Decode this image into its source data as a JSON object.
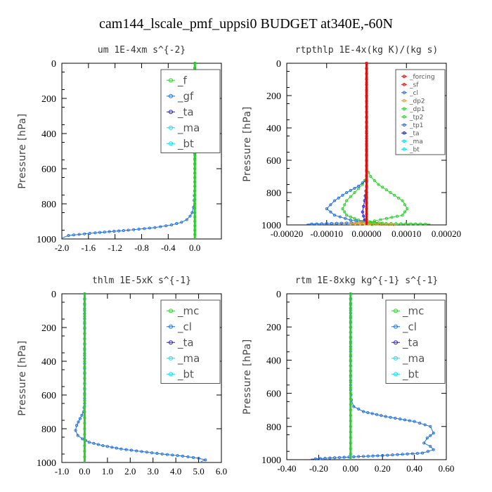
{
  "title": "cam144_lscale_pmf_uppsi0  BUDGET at340E,-60N",
  "colors": {
    "green": "#2ecc2e",
    "blue": "#1f6fe0",
    "red": "#dd1111",
    "orange": "#e8a020",
    "cyan": "#00e0f0",
    "navy": "#1a1adf"
  },
  "chart_data": [
    {
      "type": "line",
      "title": "um  1E-4xm s^{-2}",
      "ylabel": "Pressure [hPa]",
      "xlim": [
        -2.0,
        0.4
      ],
      "ylim": [
        1000,
        0
      ],
      "xticks": [
        -2.0,
        -1.6,
        -1.2,
        -0.8,
        -0.4,
        0.0
      ],
      "xtick_labels": [
        "-2.0",
        "-1.6",
        "-1.2",
        "-0.8",
        "-0.4",
        "0.0"
      ],
      "yticks": [
        0,
        200,
        400,
        600,
        800,
        1000
      ],
      "ytick_labels": [
        "0",
        "200",
        "400",
        "600",
        "800",
        "1000"
      ],
      "legend_font": 15,
      "legend": [
        "_f",
        "_gf",
        "_ta",
        "_ma",
        "_bt"
      ],
      "series": [
        {
          "name": "_gf",
          "color": "#1f6fe0",
          "x": [
            0.0,
            0.0,
            0.0,
            0.0,
            0.0,
            -0.01,
            -0.02,
            -0.04,
            -0.07,
            -0.12,
            -0.2,
            -0.35,
            -0.6,
            -1.0,
            -1.5,
            -1.9,
            -2.0
          ],
          "y": [
            0,
            200,
            400,
            600,
            700,
            780,
            820,
            850,
            870,
            890,
            905,
            920,
            935,
            950,
            965,
            980,
            995
          ]
        },
        {
          "name": "_f",
          "color": "#2ecc2e",
          "x": [
            0.0,
            0.0,
            0.0,
            0.0,
            0.0,
            0.0,
            0.0,
            0.0,
            0.0,
            0.0,
            0.0
          ],
          "y": [
            0,
            100,
            200,
            300,
            400,
            500,
            600,
            700,
            800,
            900,
            1000
          ]
        }
      ]
    },
    {
      "type": "line",
      "title": "rtpthlp  1E-4x(kg K)/(kg s)",
      "ylabel": "Pressure [hPa]",
      "xlim": [
        -0.0002,
        0.0002
      ],
      "ylim": [
        1000,
        0
      ],
      "xticks": [
        -0.0002,
        -0.0001,
        0.0,
        0.0001,
        0.0002
      ],
      "xtick_labels": [
        "-0.00020",
        "-0.00010",
        "0.00000",
        "0.00010",
        "0.00020"
      ],
      "yticks": [
        0,
        200,
        400,
        600,
        800,
        1000
      ],
      "ytick_labels": [
        "0",
        "200",
        "400",
        "600",
        "800",
        "1000"
      ],
      "legend_font": 9,
      "legend": [
        "_forcing",
        "_sf",
        "_cl",
        "_dp2",
        "_dp1",
        "_tp2",
        "_tp1",
        "_ta",
        "_ma",
        "_bt"
      ],
      "series": [
        {
          "name": "_dp1",
          "color": "#2ecc2e",
          "x": [
            0.0,
            0.0,
            1e-05,
            3e-05,
            6e-05,
            9e-05,
            0.000102,
            9e-05,
            5e-05,
            2e-05,
            0.0,
            0.00016
          ],
          "y": [
            0,
            650,
            700,
            750,
            800,
            850,
            900,
            940,
            960,
            975,
            990,
            995
          ]
        },
        {
          "name": "_tp2",
          "color": "#2ecc2e",
          "x": [
            0.0,
            0.0,
            -1e-05,
            -3e-05,
            -5e-05,
            -6e-05,
            -5e-05,
            -2e-05,
            2e-05,
            4e-05,
            0.0
          ],
          "y": [
            0,
            700,
            750,
            800,
            850,
            900,
            940,
            970,
            985,
            990,
            1000
          ]
        },
        {
          "name": "_tp1",
          "color": "#1f6fe0",
          "x": [
            0.0,
            0.0,
            -2e-05,
            -5e-05,
            -8e-05,
            -0.0001,
            -8e-05,
            -4e-05,
            0.0,
            -0.00015
          ],
          "y": [
            0,
            720,
            760,
            800,
            850,
            900,
            940,
            970,
            985,
            995
          ]
        },
        {
          "name": "_ta",
          "color": "#1a1adf",
          "x": [
            0.0,
            0.0,
            -5e-06,
            -1e-05,
            -5e-06,
            0.0
          ],
          "y": [
            0,
            760,
            850,
            920,
            970,
            1000
          ]
        },
        {
          "name": "_dp2",
          "color": "#e8a020",
          "x": [
            0.0,
            0.0,
            -4e-05,
            8e-05
          ],
          "y": [
            0,
            980,
            992,
            998
          ]
        },
        {
          "name": "_forcing",
          "color": "#dd1111",
          "x": [
            0.0,
            0.0,
            0.0,
            0.0,
            0.0,
            0.0,
            0.0,
            0.0,
            0.0,
            0.0,
            0.0
          ],
          "y": [
            0,
            100,
            200,
            300,
            400,
            500,
            600,
            700,
            800,
            900,
            1000
          ]
        }
      ]
    },
    {
      "type": "line",
      "title": "thlm  1E-5xK s^{-1}",
      "ylabel": "Pressure [hPa]",
      "xlim": [
        -1.0,
        6.0
      ],
      "ylim": [
        1000,
        0
      ],
      "xticks": [
        -1.0,
        0.0,
        1.0,
        2.0,
        3.0,
        4.0,
        5.0,
        6.0
      ],
      "xtick_labels": [
        "-1.0",
        "0.0",
        "1.0",
        "2.0",
        "3.0",
        "4.0",
        "5.0",
        "6.0"
      ],
      "yticks": [
        0,
        200,
        400,
        600,
        800,
        1000
      ],
      "ytick_labels": [
        "0",
        "200",
        "400",
        "600",
        "800",
        "1000"
      ],
      "legend_font": 15,
      "legend": [
        "_mc",
        "_cl",
        "_ta",
        "_ma",
        "_bt"
      ],
      "series": [
        {
          "name": "_cl",
          "color": "#1f6fe0",
          "x": [
            0.0,
            0.0,
            -0.05,
            -0.2,
            -0.35,
            -0.4,
            -0.3,
            -0.1,
            0.2,
            0.8,
            1.6,
            2.5,
            3.4,
            4.3,
            5.0,
            5.3,
            5.1
          ],
          "y": [
            0,
            650,
            700,
            740,
            780,
            810,
            840,
            860,
            880,
            900,
            920,
            935,
            950,
            962,
            975,
            985,
            995
          ]
        },
        {
          "name": "_mc",
          "color": "#2ecc2e",
          "x": [
            0.0,
            0.0,
            0.0,
            0.0,
            0.0,
            0.0,
            0.0,
            0.0,
            0.0,
            0.0,
            0.0
          ],
          "y": [
            0,
            100,
            200,
            300,
            400,
            500,
            600,
            700,
            800,
            900,
            1000
          ]
        }
      ]
    },
    {
      "type": "line",
      "title": "rtm  1E-8xkg kg^{-1} s^{-1}",
      "ylabel": "Pressure [hPa]",
      "xlim": [
        -0.4,
        0.6
      ],
      "ylim": [
        1000,
        0
      ],
      "xticks": [
        -0.4,
        -0.2,
        0.0,
        0.2,
        0.4,
        0.6
      ],
      "xtick_labels": [
        "-0.40",
        "-0.20",
        "0.00",
        "0.20",
        "0.40",
        "0.60"
      ],
      "yticks": [
        0,
        200,
        400,
        600,
        800,
        1000
      ],
      "ytick_labels": [
        "0",
        "200",
        "400",
        "600",
        "800",
        "1000"
      ],
      "legend_font": 15,
      "legend": [
        "_mc",
        "_cl",
        "_ta",
        "_ma",
        "_bt"
      ],
      "series": [
        {
          "name": "_cl",
          "color": "#1f6fe0",
          "x": [
            0.0,
            0.0,
            0.005,
            0.02,
            0.08,
            0.22,
            0.4,
            0.5,
            0.52,
            0.48,
            0.46,
            0.5,
            0.52,
            0.45,
            0.2,
            -0.1,
            -0.25
          ],
          "y": [
            0,
            580,
            640,
            680,
            710,
            740,
            770,
            800,
            840,
            870,
            900,
            920,
            940,
            960,
            975,
            988,
            997
          ]
        },
        {
          "name": "_mc",
          "color": "#2ecc2e",
          "x": [
            0.0,
            0.0,
            0.0,
            0.0,
            0.0,
            0.0,
            0.0,
            0.0,
            0.0,
            0.0,
            0.0
          ],
          "y": [
            0,
            100,
            200,
            300,
            400,
            500,
            600,
            700,
            800,
            900,
            1000
          ]
        }
      ]
    }
  ]
}
